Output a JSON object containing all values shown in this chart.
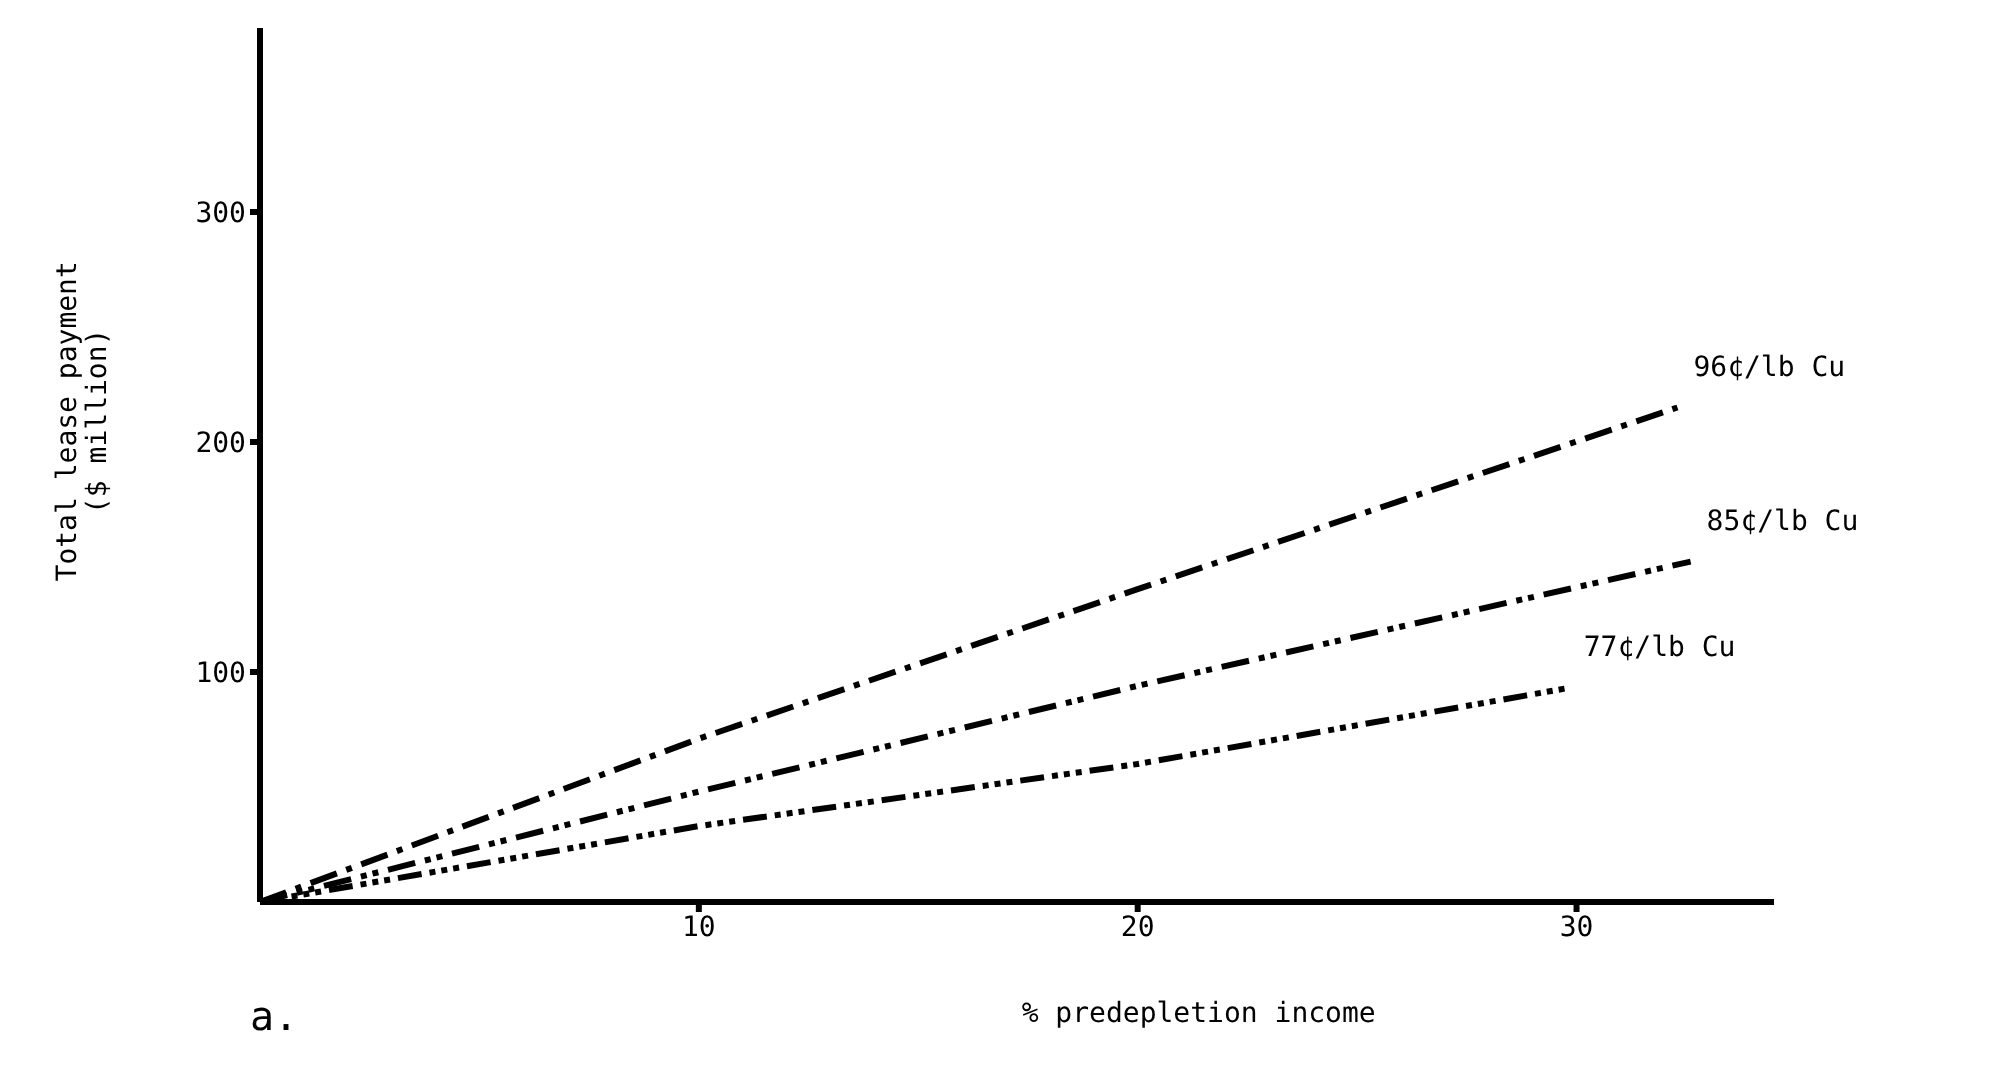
{
  "chart_data": {
    "type": "line",
    "xlabel": "% predepletion income",
    "ylabel": "Total lease payment\n($ million)",
    "annotations": [
      "a."
    ],
    "xlim": [
      0,
      34.5
    ],
    "xticks": [
      10,
      20,
      30
    ],
    "ylim": [
      0,
      380
    ],
    "yticks": [
      100,
      200,
      300
    ],
    "grid": false,
    "legend": false,
    "marker": "none",
    "line_style": "dashed",
    "series": [
      {
        "name": "96¢/lb Cu",
        "color": "#000000",
        "x": [
          0,
          10,
          20,
          32.3
        ],
        "values": [
          0,
          71,
          136,
          215
        ]
      },
      {
        "name": "85¢/lb Cu",
        "color": "#000000",
        "x": [
          0,
          10,
          20,
          32.6
        ],
        "values": [
          0,
          48,
          94,
          148
        ]
      },
      {
        "name": "77¢/lb Cu",
        "color": "#000000",
        "x": [
          0,
          10,
          20,
          29.8
        ],
        "values": [
          0,
          33,
          60,
          93
        ]
      }
    ]
  }
}
